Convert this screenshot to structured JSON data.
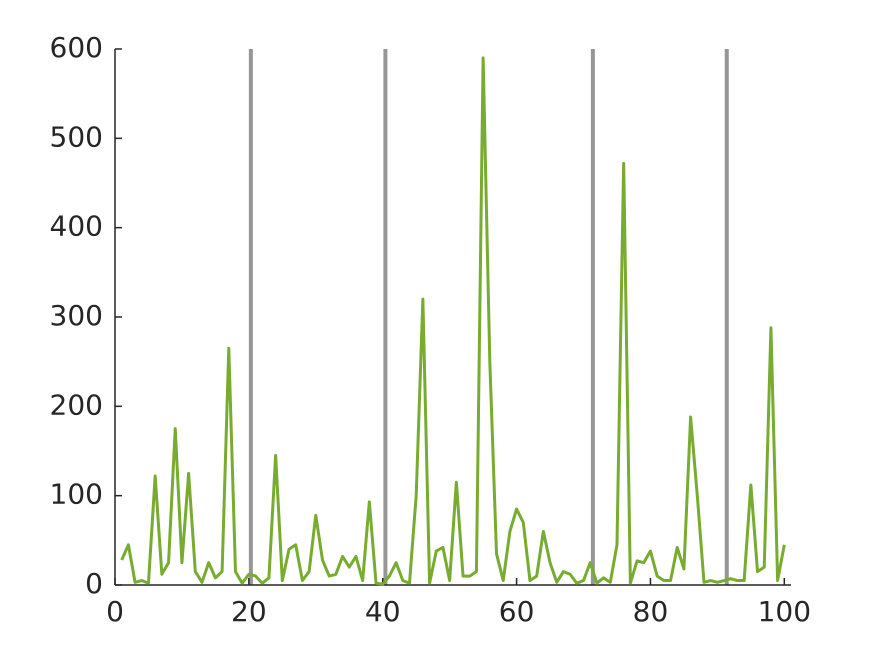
{
  "chart_data": {
    "type": "line",
    "x": [
      1,
      2,
      3,
      4,
      5,
      6,
      7,
      8,
      9,
      10,
      11,
      12,
      13,
      14,
      15,
      16,
      17,
      18,
      19,
      20,
      21,
      22,
      23,
      24,
      25,
      26,
      27,
      28,
      29,
      30,
      31,
      32,
      33,
      34,
      35,
      36,
      37,
      38,
      39,
      40,
      41,
      42,
      43,
      44,
      45,
      46,
      47,
      48,
      49,
      50,
      51,
      52,
      53,
      54,
      55,
      56,
      57,
      58,
      59,
      60,
      61,
      62,
      63,
      64,
      65,
      66,
      67,
      68,
      69,
      70,
      71,
      72,
      73,
      74,
      75,
      76,
      77,
      78,
      79,
      80,
      81,
      82,
      83,
      84,
      85,
      86,
      87,
      88,
      89,
      90,
      91,
      92,
      93,
      94,
      95,
      96,
      97,
      98,
      99,
      100
    ],
    "series": [
      {
        "color": "#77ac30",
        "values": [
          28,
          45,
          3,
          5,
          2,
          122,
          12,
          25,
          175,
          25,
          125,
          15,
          3,
          25,
          8,
          15,
          265,
          15,
          2,
          12,
          10,
          2,
          8,
          145,
          5,
          40,
          45,
          5,
          15,
          78,
          28,
          10,
          12,
          32,
          20,
          32,
          5,
          93,
          2,
          1,
          10,
          25,
          5,
          2,
          100,
          320,
          2,
          38,
          42,
          5,
          115,
          10,
          10,
          15,
          590,
          250,
          35,
          5,
          60,
          85,
          70,
          5,
          10,
          60,
          25,
          3,
          15,
          12,
          2,
          5,
          25,
          2,
          8,
          3,
          45,
          472,
          2,
          27,
          25,
          38,
          10,
          5,
          5,
          42,
          18,
          188,
          100,
          3,
          5,
          3,
          5,
          7,
          5,
          5,
          112,
          15,
          20,
          288,
          5,
          45
        ]
      }
    ],
    "vlines": [
      20.3,
      40.4,
      71.4,
      91.4
    ],
    "vline_color": "#969696",
    "xlim": [
      0,
      101
    ],
    "xticks": [
      0,
      20,
      40,
      60,
      80,
      100
    ],
    "ylim": [
      0,
      600
    ],
    "yticks": [
      0,
      100,
      200,
      300,
      400,
      500,
      600
    ],
    "grid": false
  }
}
